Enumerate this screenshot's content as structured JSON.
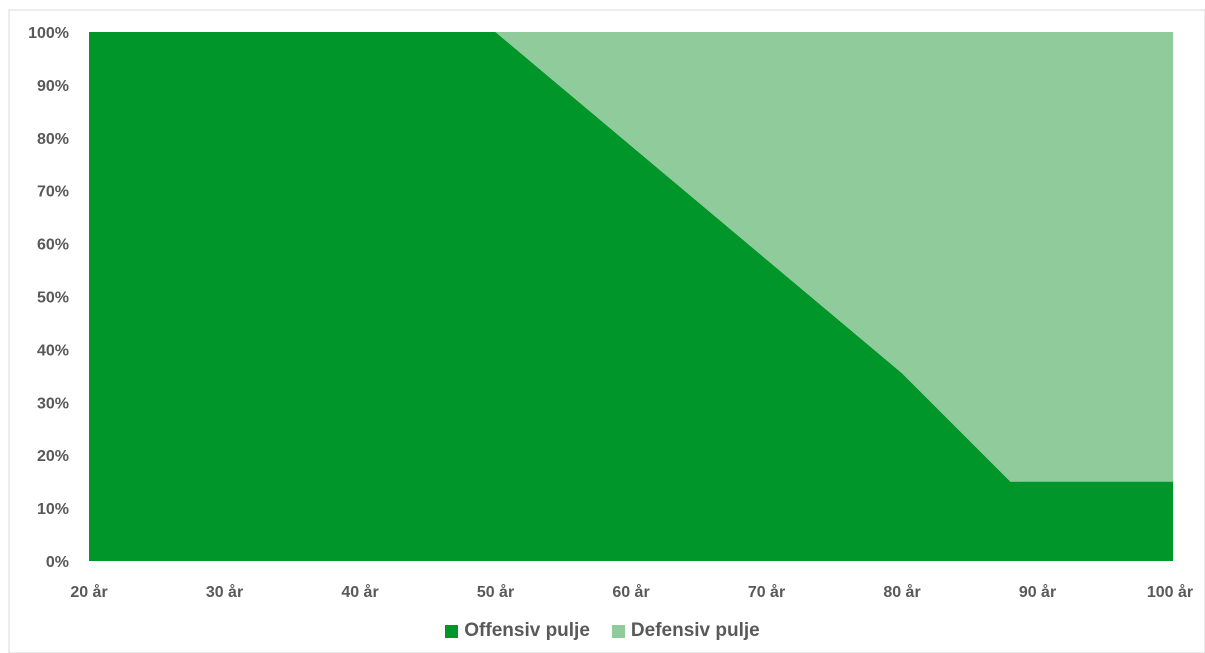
{
  "chart_data": {
    "type": "area",
    "stacked": true,
    "percent": true,
    "x": [
      20,
      30,
      40,
      50,
      60,
      70,
      80,
      88,
      90,
      100
    ],
    "x_tick_labels": [
      "20 år",
      "30 år",
      "40 år",
      "50 år",
      "60 år",
      "70 år",
      "80 år",
      "90 år",
      "100 år"
    ],
    "y_tick_labels": [
      "0%",
      "10%",
      "20%",
      "30%",
      "40%",
      "50%",
      "60%",
      "70%",
      "80%",
      "90%",
      "100%"
    ],
    "xlim": [
      20,
      100
    ],
    "ylim": [
      0,
      100
    ],
    "grid": false,
    "legend_position": "bottom",
    "series": [
      {
        "name": "Offensiv pulje",
        "color": "#00962a",
        "values": [
          100,
          100,
          100,
          100,
          78.5,
          57,
          35.5,
          15,
          15,
          15
        ]
      },
      {
        "name": "Defensiv pulje",
        "color": "#8fcb9b",
        "values": [
          0,
          0,
          0,
          0,
          21.5,
          43,
          64.5,
          85,
          85,
          85
        ]
      }
    ],
    "title": "",
    "xlabel": "",
    "ylabel": ""
  }
}
